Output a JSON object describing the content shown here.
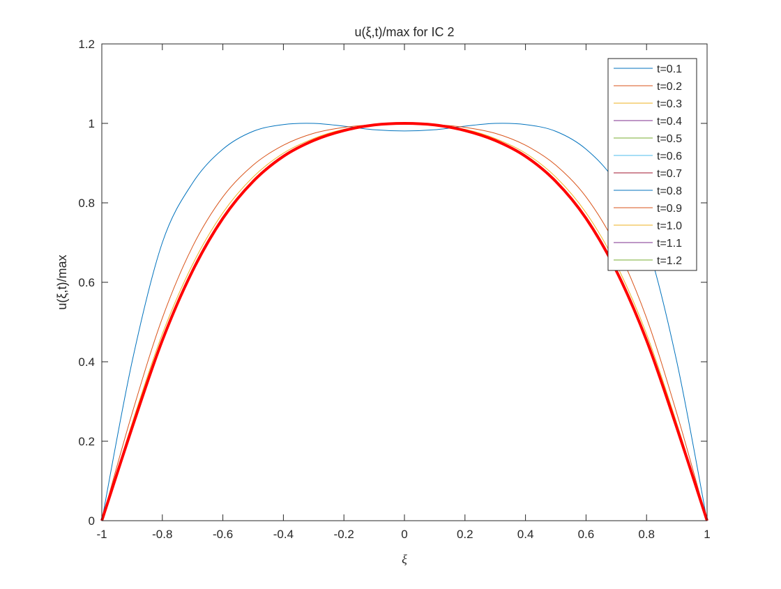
{
  "chart_data": {
    "type": "line",
    "title": "u(ξ,t)/max for IC 2",
    "xlabel": "ξ",
    "ylabel": "u(ξ,t)/max",
    "xlim": [
      -1,
      1
    ],
    "ylim": [
      0,
      1.2
    ],
    "xticks": [
      -1,
      -0.8,
      -0.6,
      -0.4,
      -0.2,
      0,
      0.2,
      0.4,
      0.6,
      0.8,
      1
    ],
    "xtick_labels": [
      "-1",
      "-0.8",
      "-0.6",
      "-0.4",
      "-0.2",
      "0",
      "0.2",
      "0.4",
      "0.6",
      "0.8",
      "1"
    ],
    "yticks": [
      0,
      0.2,
      0.4,
      0.6,
      0.8,
      1,
      1.2
    ],
    "ytick_labels": [
      "0",
      "0.2",
      "0.4",
      "0.6",
      "0.8",
      "1",
      "1.2"
    ],
    "grid": false,
    "legend_position": "top-right",
    "x": [
      -1,
      -0.9,
      -0.8,
      -0.7,
      -0.6,
      -0.5,
      -0.4,
      -0.3,
      -0.2,
      -0.1,
      0,
      0.1,
      0.2,
      0.3,
      0.4,
      0.5,
      0.6,
      0.7,
      0.8,
      0.9,
      1
    ],
    "series": [
      {
        "name": "t=0.1",
        "color": "#0072BD",
        "values": [
          0,
          0.4,
          0.7,
          0.85,
          0.935,
          0.98,
          0.997,
          1.0,
          0.993,
          0.984,
          0.981,
          0.984,
          0.993,
          1.0,
          0.997,
          0.98,
          0.935,
          0.85,
          0.7,
          0.4,
          0
        ]
      },
      {
        "name": "t=0.2",
        "color": "#D95319",
        "values": [
          0,
          0.27,
          0.51,
          0.69,
          0.815,
          0.895,
          0.945,
          0.975,
          0.99,
          0.997,
          1.0,
          0.997,
          0.99,
          0.975,
          0.945,
          0.895,
          0.815,
          0.69,
          0.51,
          0.27,
          0
        ]
      },
      {
        "name": "t=0.3",
        "color": "#EDB120",
        "values": [
          0,
          0.245,
          0.47,
          0.645,
          0.775,
          0.865,
          0.925,
          0.962,
          0.985,
          0.996,
          1.0,
          0.996,
          0.985,
          0.962,
          0.925,
          0.865,
          0.775,
          0.645,
          0.47,
          0.245,
          0
        ]
      },
      {
        "name": "t=0.4",
        "color": "#7E2F8E",
        "values": [
          0,
          0.237,
          0.458,
          0.633,
          0.765,
          0.857,
          0.92,
          0.958,
          0.983,
          0.996,
          1.0,
          0.996,
          0.983,
          0.958,
          0.92,
          0.857,
          0.765,
          0.633,
          0.458,
          0.237,
          0
        ]
      },
      {
        "name": "t=0.5",
        "color": "#77AC30",
        "values": [
          0,
          0.235,
          0.455,
          0.63,
          0.762,
          0.855,
          0.918,
          0.957,
          0.982,
          0.996,
          1.0,
          0.996,
          0.982,
          0.957,
          0.918,
          0.855,
          0.762,
          0.63,
          0.455,
          0.235,
          0
        ]
      },
      {
        "name": "t=0.6",
        "color": "#4DBEEE",
        "values": [
          0,
          0.234,
          0.454,
          0.629,
          0.761,
          0.854,
          0.917,
          0.957,
          0.982,
          0.996,
          1.0,
          0.996,
          0.982,
          0.957,
          0.917,
          0.854,
          0.761,
          0.629,
          0.454,
          0.234,
          0
        ]
      },
      {
        "name": "t=0.7",
        "color": "#A2142F",
        "values": [
          0,
          0.234,
          0.454,
          0.629,
          0.761,
          0.854,
          0.917,
          0.957,
          0.982,
          0.996,
          1.0,
          0.996,
          0.982,
          0.957,
          0.917,
          0.854,
          0.761,
          0.629,
          0.454,
          0.234,
          0
        ]
      },
      {
        "name": "t=0.8",
        "color": "#0072BD",
        "values": [
          0,
          0.234,
          0.454,
          0.629,
          0.761,
          0.854,
          0.917,
          0.957,
          0.982,
          0.996,
          1.0,
          0.996,
          0.982,
          0.957,
          0.917,
          0.854,
          0.761,
          0.629,
          0.454,
          0.234,
          0
        ]
      },
      {
        "name": "t=0.9",
        "color": "#D95319",
        "values": [
          0,
          0.234,
          0.454,
          0.629,
          0.761,
          0.854,
          0.917,
          0.957,
          0.982,
          0.996,
          1.0,
          0.996,
          0.982,
          0.957,
          0.917,
          0.854,
          0.761,
          0.629,
          0.454,
          0.234,
          0
        ]
      },
      {
        "name": "t=1.0",
        "color": "#EDB120",
        "values": [
          0,
          0.234,
          0.454,
          0.629,
          0.761,
          0.854,
          0.917,
          0.957,
          0.982,
          0.996,
          1.0,
          0.996,
          0.982,
          0.957,
          0.917,
          0.854,
          0.761,
          0.629,
          0.454,
          0.234,
          0
        ]
      },
      {
        "name": "t=1.1",
        "color": "#7E2F8E",
        "values": [
          0,
          0.234,
          0.454,
          0.629,
          0.761,
          0.854,
          0.917,
          0.957,
          0.982,
          0.996,
          1.0,
          0.996,
          0.982,
          0.957,
          0.917,
          0.854,
          0.761,
          0.629,
          0.454,
          0.234,
          0
        ]
      },
      {
        "name": "t=1.2",
        "color": "#77AC30",
        "values": [
          0,
          0.234,
          0.454,
          0.629,
          0.761,
          0.854,
          0.917,
          0.957,
          0.982,
          0.996,
          1.0,
          0.996,
          0.982,
          0.957,
          0.917,
          0.854,
          0.761,
          0.629,
          0.454,
          0.234,
          0
        ]
      },
      {
        "color": "#FF0000",
        "values": [
          0,
          0.234,
          0.454,
          0.629,
          0.761,
          0.854,
          0.917,
          0.957,
          0.982,
          0.996,
          1.0,
          0.996,
          0.982,
          0.957,
          0.917,
          0.854,
          0.761,
          0.629,
          0.454,
          0.234,
          0
        ]
      }
    ]
  }
}
